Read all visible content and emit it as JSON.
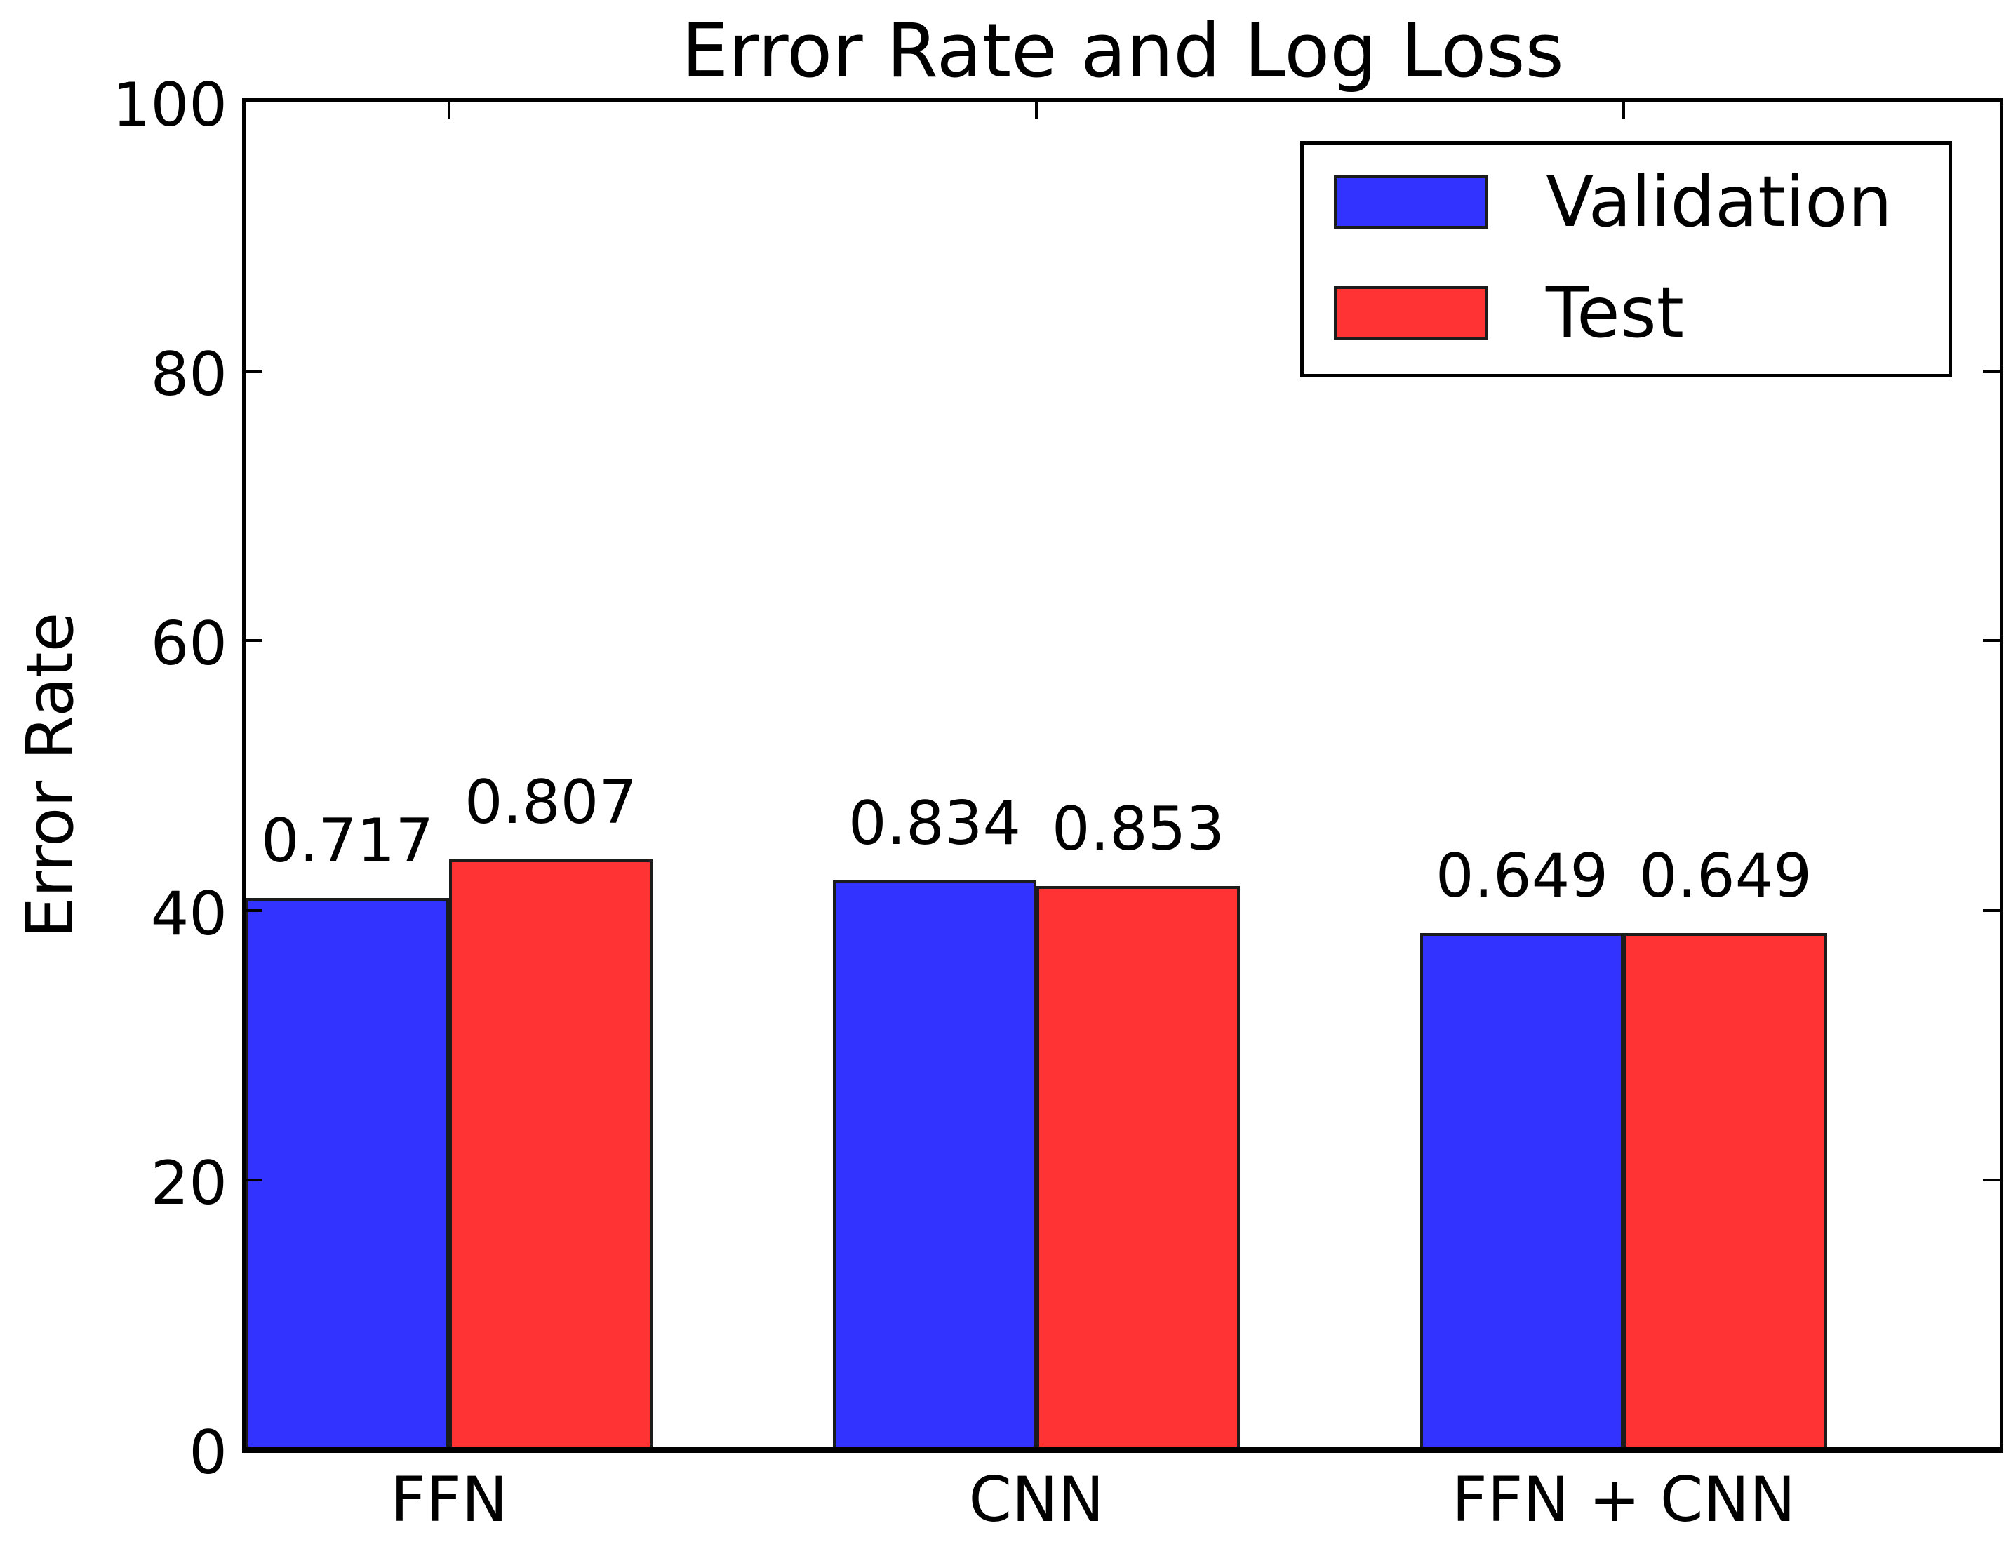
{
  "chart_data": {
    "type": "bar",
    "title": "Error Rate and Log Loss",
    "xlabel": "",
    "ylabel": "Error Rate",
    "ylim": [
      0,
      100
    ],
    "yticks": [
      0,
      20,
      40,
      60,
      80,
      100
    ],
    "grid": false,
    "categories": [
      "FFN",
      "CNN",
      "FFN + CNN"
    ],
    "series": [
      {
        "name": "Validation",
        "color": "#3333ff",
        "values": [
          40.9,
          42.2,
          38.3
        ],
        "bar_labels": [
          "0.717",
          "0.834",
          "0.649"
        ]
      },
      {
        "name": "Test",
        "color": "#ff3333",
        "values": [
          43.8,
          41.8,
          38.3
        ],
        "bar_labels": [
          "0.807",
          "0.853",
          "0.649"
        ]
      }
    ],
    "legend": {
      "position": "upper right",
      "entries": [
        "Validation",
        "Test"
      ]
    }
  }
}
